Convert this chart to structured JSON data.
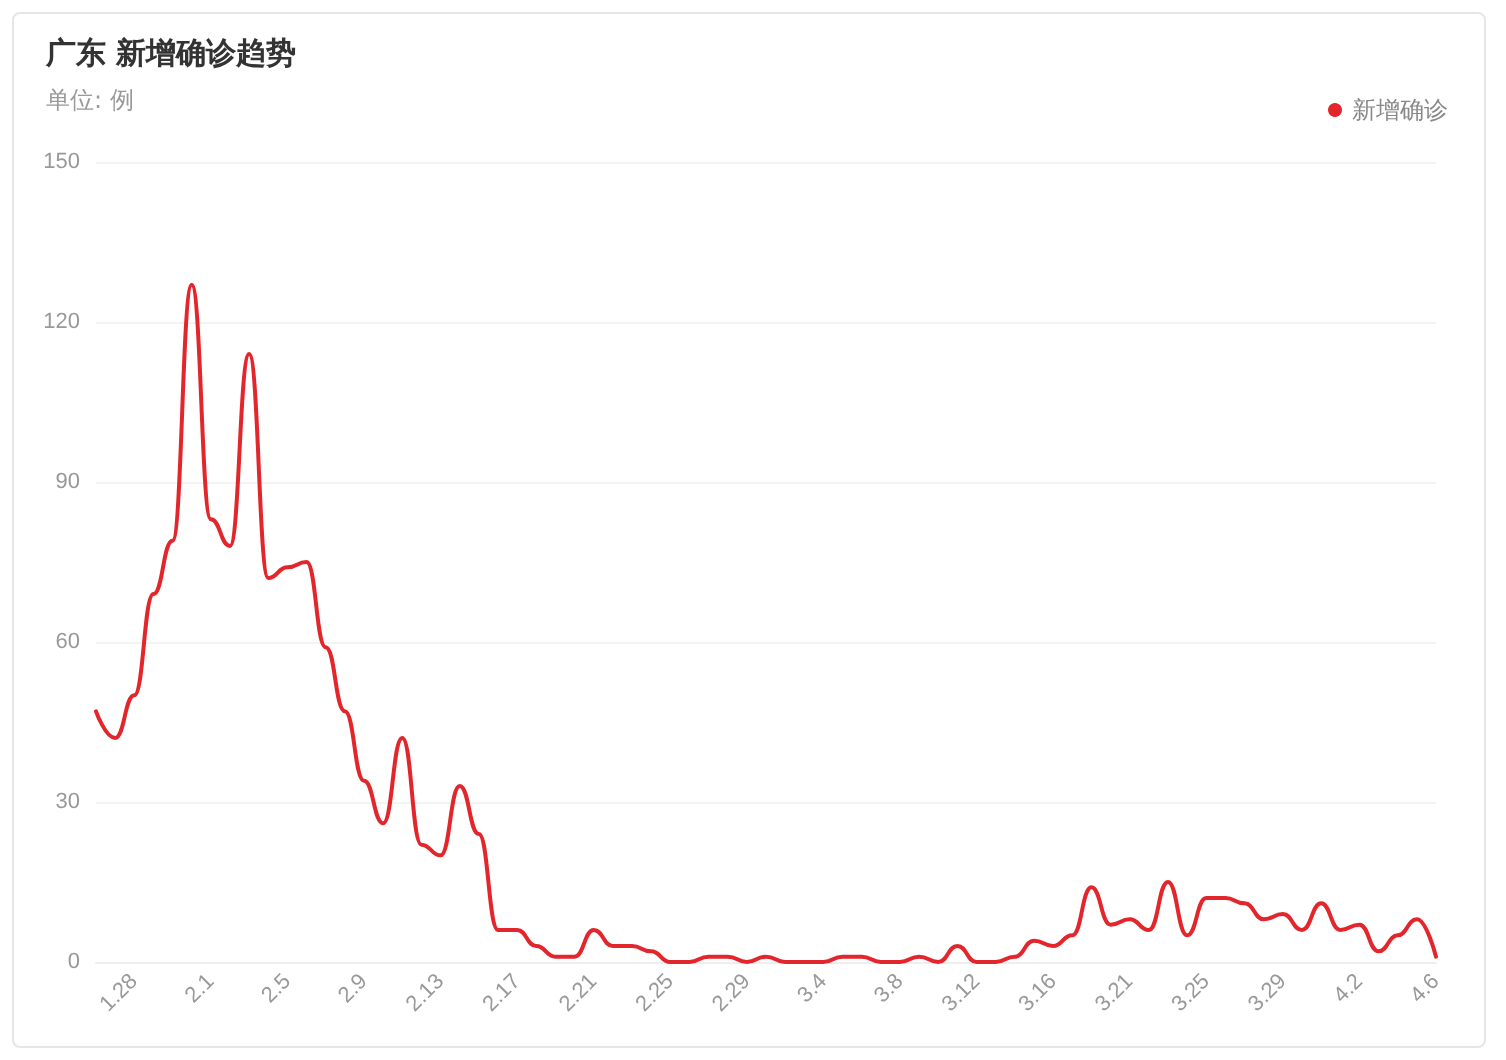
{
  "chart_data": {
    "type": "line",
    "title": "广东 新增确诊趋势",
    "subtitle": "单位: 例",
    "categories": [
      null,
      null,
      "1.28",
      null,
      null,
      null,
      "2.1",
      null,
      null,
      null,
      "2.5",
      null,
      null,
      null,
      "2.9",
      null,
      null,
      null,
      "2.13",
      null,
      null,
      null,
      "2.17",
      null,
      null,
      null,
      "2.21",
      null,
      null,
      null,
      "2.25",
      null,
      null,
      null,
      "2.29",
      null,
      null,
      null,
      "3.4",
      null,
      null,
      null,
      "3.8",
      null,
      null,
      null,
      "3.12",
      null,
      null,
      null,
      "3.16",
      null,
      null,
      null,
      "3.21",
      null,
      null,
      null,
      "3.25",
      null,
      null,
      null,
      "3.29",
      null,
      null,
      null,
      "4.2",
      null,
      null,
      null,
      "4.6"
    ],
    "series": [
      {
        "name": "新增确诊",
        "color": "#e3262c",
        "values": [
          47,
          42,
          50,
          69,
          79,
          127,
          83,
          78,
          114,
          72,
          74,
          75,
          59,
          47,
          34,
          26,
          42,
          22,
          20,
          33,
          24,
          6,
          6,
          3,
          1,
          1,
          6,
          3,
          3,
          2,
          0,
          0,
          1,
          1,
          0,
          1,
          0,
          0,
          0,
          1,
          1,
          0,
          0,
          1,
          0,
          3,
          0,
          0,
          1,
          4,
          3,
          5,
          14,
          7,
          8,
          6,
          15,
          5,
          12,
          12,
          11,
          8,
          9,
          6,
          11,
          6,
          7,
          2,
          5,
          8,
          1
        ]
      }
    ],
    "ylim": [
      0,
      150
    ],
    "yticks": [
      0,
      30,
      60,
      90,
      120,
      150
    ],
    "grid": "y",
    "legend": "top right",
    "marker": "none",
    "line_style": "solid"
  }
}
